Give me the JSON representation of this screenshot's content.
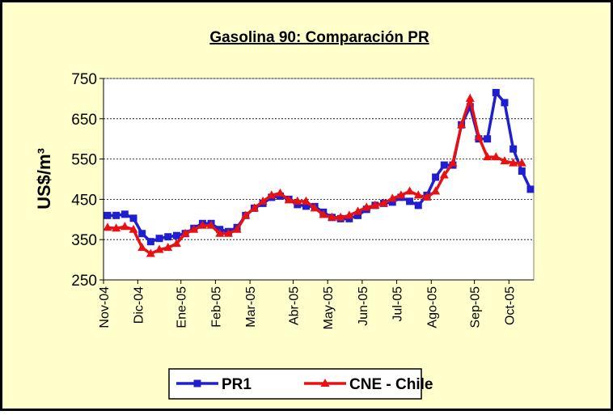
{
  "chart_data": {
    "type": "line",
    "title": "Gasolina 90: Comparación PR",
    "y_label": "US$/m³",
    "categories": [
      "Nov-04",
      null,
      null,
      null,
      "Dic-04",
      null,
      null,
      null,
      null,
      "Ene-05",
      null,
      null,
      null,
      "Feb-05",
      null,
      null,
      null,
      "Mar-05",
      null,
      null,
      null,
      null,
      "Abr-05",
      null,
      null,
      null,
      "May-05",
      null,
      null,
      null,
      "Jun-05",
      null,
      null,
      null,
      "Jul-05",
      null,
      null,
      null,
      "Ago-05",
      null,
      null,
      null,
      null,
      "Sep-05",
      null,
      null,
      null,
      "Oct-05",
      null,
      null
    ],
    "series": [
      {
        "name": "PR1",
        "color": "#1f1fd0",
        "marker": "square",
        "values": [
          410,
          410,
          413,
          403,
          365,
          345,
          353,
          357,
          360,
          365,
          378,
          390,
          390,
          375,
          370,
          380,
          410,
          428,
          440,
          455,
          458,
          450,
          437,
          433,
          432,
          418,
          405,
          402,
          402,
          410,
          425,
          435,
          440,
          443,
          455,
          445,
          435,
          460,
          505,
          535,
          535,
          635,
          680,
          600,
          600,
          715,
          690,
          575,
          520,
          475
        ]
      },
      {
        "name": "CNE - Chile",
        "color": "#e81010",
        "marker": "triangle",
        "values": [
          380,
          378,
          382,
          375,
          330,
          315,
          325,
          330,
          340,
          365,
          375,
          385,
          385,
          365,
          365,
          375,
          410,
          428,
          445,
          460,
          465,
          448,
          445,
          445,
          428,
          412,
          405,
          405,
          410,
          420,
          430,
          435,
          440,
          452,
          460,
          470,
          460,
          455,
          470,
          510,
          540,
          635,
          700,
          605,
          555,
          555,
          545,
          540,
          540,
          null
        ]
      }
    ],
    "ylim": [
      250,
      750
    ],
    "yticks": [
      250,
      350,
      450,
      550,
      650,
      750
    ],
    "grid": true,
    "legend": "bottom"
  }
}
